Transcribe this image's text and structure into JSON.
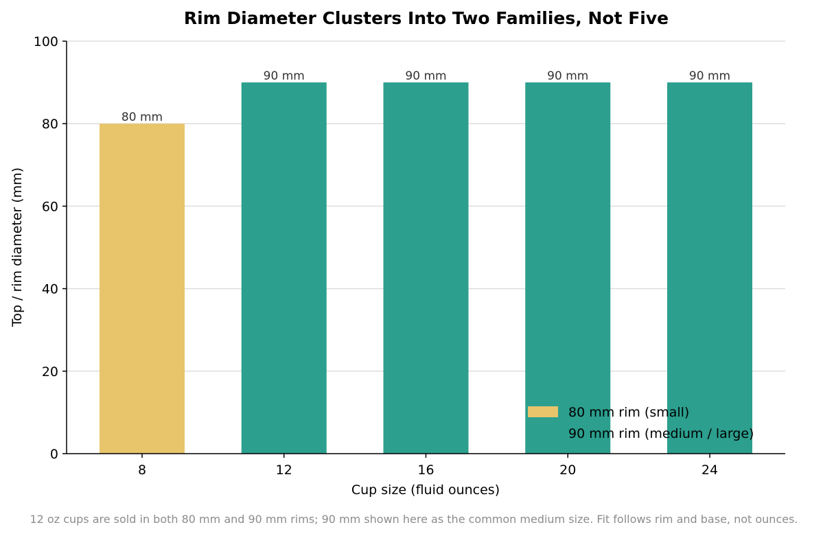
{
  "chart_data": {
    "type": "bar",
    "title": "Rim Diameter Clusters Into Two Families, Not Five",
    "xlabel": "Cup size (fluid ounces)",
    "ylabel": "Top / rim diameter (mm)",
    "categories": [
      "8",
      "12",
      "16",
      "20",
      "24"
    ],
    "values": [
      80,
      90,
      90,
      90,
      90
    ],
    "data_labels": [
      "80 mm",
      "90 mm",
      "90 mm",
      "90 mm",
      "90 mm"
    ],
    "bar_groups": [
      "small",
      "large",
      "large",
      "large",
      "large"
    ],
    "ylim": [
      0,
      100
    ],
    "yticks": [
      0,
      20,
      40,
      60,
      80,
      100
    ],
    "grid": "horizontal",
    "legend_position": "bottom-right",
    "legend": [
      {
        "label": "80 mm rim (small)",
        "color": "#E8C46B",
        "group": "small"
      },
      {
        "label": "90 mm rim (medium / large)",
        "color": "#2C9F8E",
        "group": "large"
      }
    ],
    "footnote": "12 oz cups are sold in both 80 mm and 90 mm rims; 90 mm shown here as the common medium size. Fit follows rim and base, not ounces."
  }
}
